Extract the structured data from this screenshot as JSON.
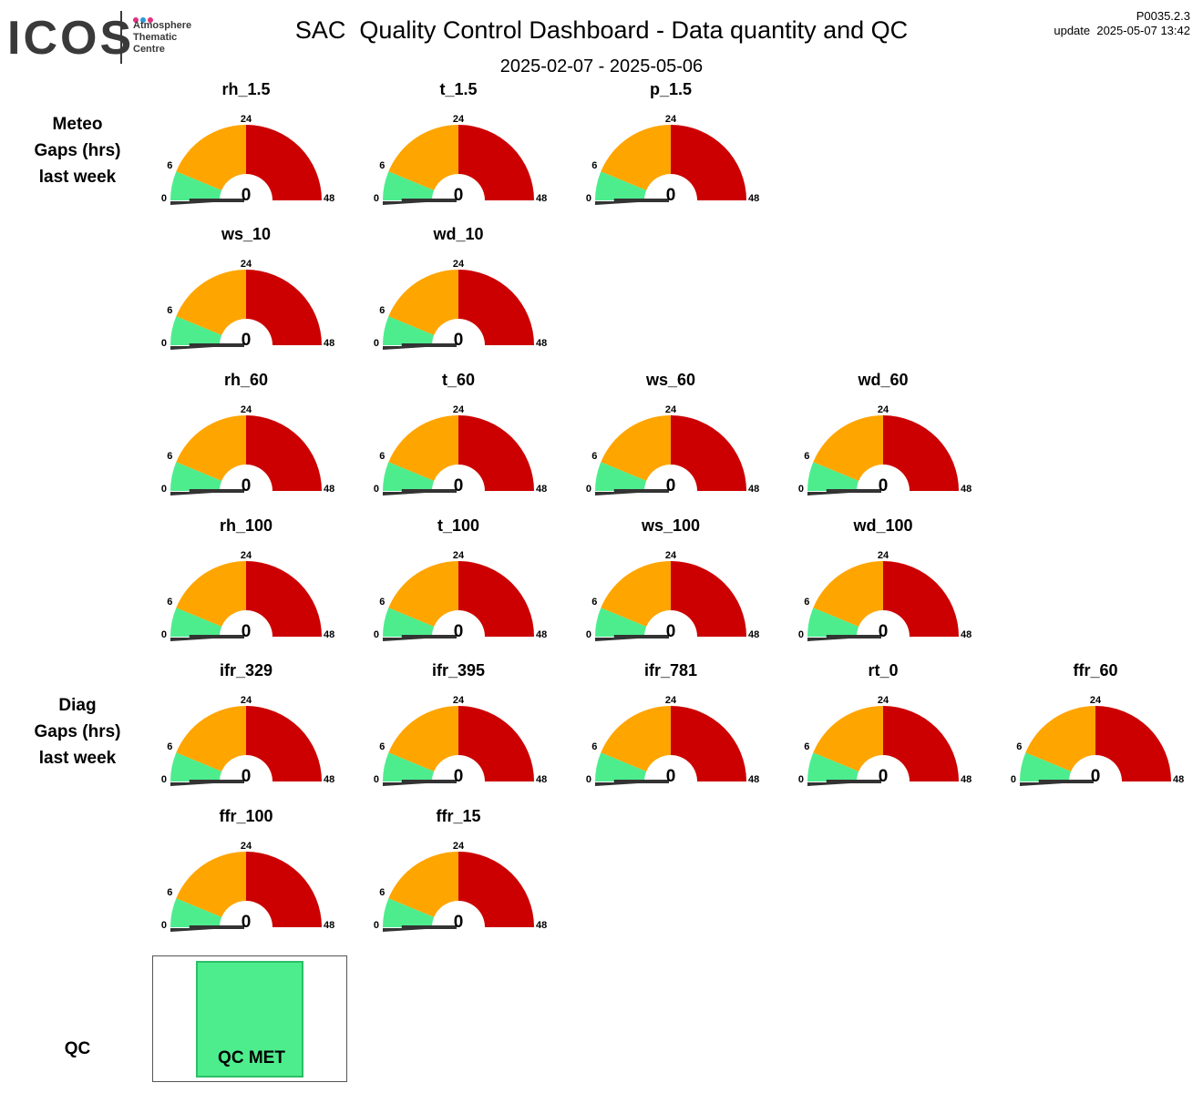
{
  "logo": {
    "wordmark": "ICOS",
    "subtitle_lines": [
      "Atmosphere",
      "Thematic",
      "Centre"
    ],
    "dot_colors": [
      "#e4317f",
      "#2b9ad8",
      "#e4317f"
    ]
  },
  "header": {
    "title": "SAC  Quality Control Dashboard - Data quantity and QC",
    "date_range": "2025-02-07 - 2025-05-06",
    "version": "P0035.2.3",
    "update": "update  2025-05-07 13:42"
  },
  "sections": {
    "meteo": [
      "Meteo",
      "Gaps (hrs)",
      "last week"
    ],
    "diag": [
      "Diag",
      "Gaps (hrs)",
      "last week"
    ],
    "qc": "QC"
  },
  "colors": {
    "green": "#4ded8e",
    "orange": "#ffa500",
    "red": "#cc0000",
    "needle": "#333333"
  },
  "chart_data": {
    "type": "gauge",
    "scale": {
      "min": 0,
      "max": 48,
      "thresholds": [
        6,
        24
      ],
      "tick_labels": [
        "0",
        "6",
        "24",
        "48"
      ]
    },
    "gauges": [
      {
        "name": "rh_1.5",
        "value": 0
      },
      {
        "name": "t_1.5",
        "value": 0
      },
      {
        "name": "p_1.5",
        "value": 0
      },
      {
        "name": "ws_10",
        "value": 0
      },
      {
        "name": "wd_10",
        "value": 0
      },
      {
        "name": "rh_60",
        "value": 0
      },
      {
        "name": "t_60",
        "value": 0
      },
      {
        "name": "ws_60",
        "value": 0
      },
      {
        "name": "wd_60",
        "value": 0
      },
      {
        "name": "rh_100",
        "value": 0
      },
      {
        "name": "t_100",
        "value": 0
      },
      {
        "name": "ws_100",
        "value": 0
      },
      {
        "name": "wd_100",
        "value": 0
      },
      {
        "name": "ifr_329",
        "value": 0
      },
      {
        "name": "ifr_395",
        "value": 0
      },
      {
        "name": "ifr_781",
        "value": 0
      },
      {
        "name": "rt_0",
        "value": 0
      },
      {
        "name": "ffr_60",
        "value": 0
      },
      {
        "name": "ffr_100",
        "value": 0
      },
      {
        "name": "ffr_15",
        "value": 0
      }
    ]
  },
  "qc": {
    "status": "QC MET",
    "color": "#4ded8e"
  }
}
